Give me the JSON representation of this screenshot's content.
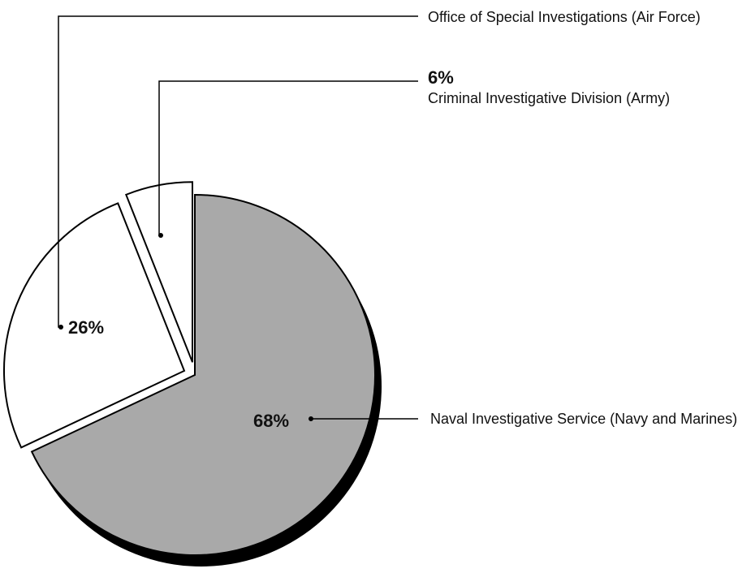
{
  "chart_data": {
    "type": "pie",
    "categories": [
      "Naval Investigative Service (Navy and Marines)",
      "Office of Special Investigations (Air Force)",
      "Criminal Investigative Division (Army)"
    ],
    "values": [
      68,
      26,
      6
    ],
    "value_labels": [
      "68%",
      "26%",
      "6%"
    ],
    "colors": [
      "#a9a9a9",
      "#ffffff",
      "#ffffff"
    ]
  }
}
